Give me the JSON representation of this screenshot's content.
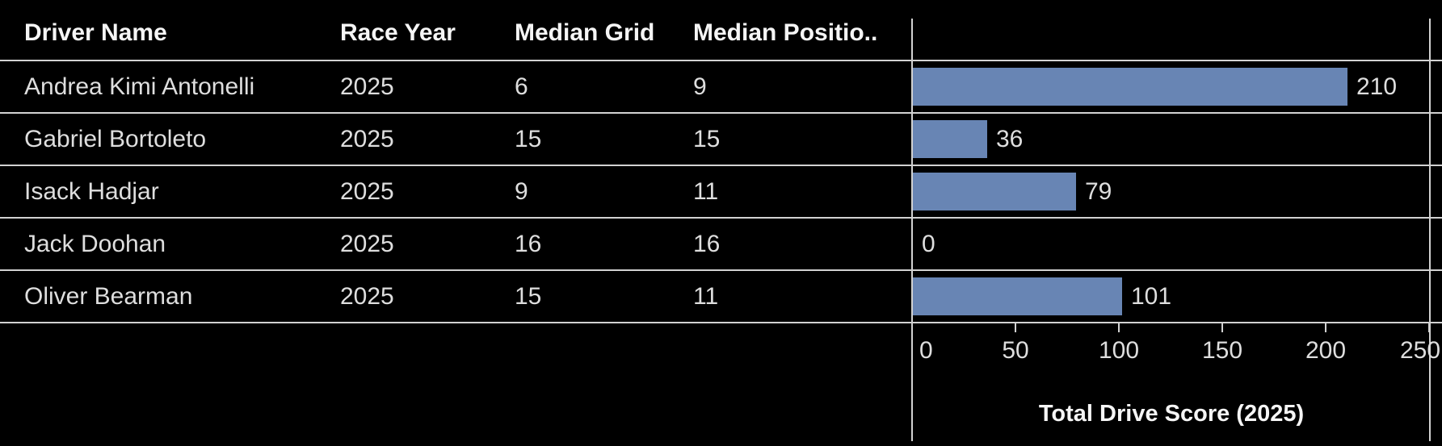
{
  "table": {
    "columns": [
      "Driver Name",
      "Race Year",
      "Median Grid",
      "Median Positio.."
    ],
    "rows": [
      {
        "driver": "Andrea Kimi Antonelli",
        "race_year": "2025",
        "median_grid": "6",
        "median_position": "9"
      },
      {
        "driver": "Gabriel Bortoleto",
        "race_year": "2025",
        "median_grid": "15",
        "median_position": "15"
      },
      {
        "driver": "Isack Hadjar",
        "race_year": "2025",
        "median_grid": "9",
        "median_position": "11"
      },
      {
        "driver": "Jack Doohan",
        "race_year": "2025",
        "median_grid": "16",
        "median_position": "16"
      },
      {
        "driver": "Oliver Bearman",
        "race_year": "2025",
        "median_grid": "15",
        "median_position": "11"
      }
    ]
  },
  "chart_data": {
    "type": "bar",
    "orientation": "horizontal",
    "categories": [
      "Andrea Kimi Antonelli",
      "Gabriel Bortoleto",
      "Isack Hadjar",
      "Jack Doohan",
      "Oliver Bearman"
    ],
    "values": [
      210,
      36,
      79,
      0,
      101
    ],
    "value_labels": [
      "210",
      "36",
      "79",
      "0",
      "101"
    ],
    "title": "",
    "xlabel": "Total Drive Score (2025)",
    "ylabel": "",
    "xlim": [
      0,
      250
    ],
    "ticks": [
      0,
      50,
      100,
      150,
      200,
      250
    ],
    "grid": false,
    "legend": "none",
    "bar_color": "#6885b4"
  },
  "colors": {
    "background": "#000000",
    "bar": "#6885b4",
    "grid_line": "#d2d2d2",
    "header_text": "#f5f5f5",
    "body_text": "#dedede"
  }
}
